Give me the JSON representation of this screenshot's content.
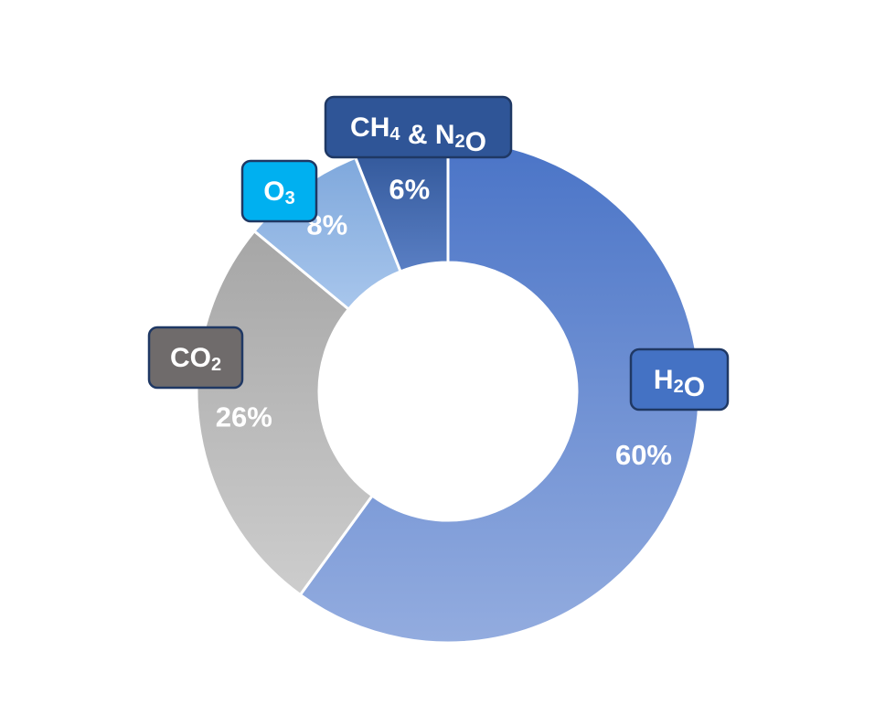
{
  "chart_data": {
    "type": "pie",
    "variant": "donut",
    "slices": [
      {
        "label": "H2O",
        "label_parts": [
          {
            "t": "H"
          },
          {
            "t": "2",
            "sub": true
          },
          {
            "t": "O"
          }
        ],
        "value": 60,
        "value_label": "60%",
        "fill_top": "#4a74c7",
        "fill_bottom": "#93acdf",
        "label_box_color": "#4472c4"
      },
      {
        "label": "CO2",
        "label_parts": [
          {
            "t": "CO"
          },
          {
            "t": "2",
            "sub": true
          }
        ],
        "value": 26,
        "value_label": "26%",
        "fill_top": "#a6a6a6",
        "fill_bottom": "#cdcdcd",
        "label_box_color": "#6f6b6b"
      },
      {
        "label": "O3",
        "label_parts": [
          {
            "t": "O"
          },
          {
            "t": "3",
            "sub": true
          }
        ],
        "value": 8,
        "value_label": "8%",
        "fill_top": "#7fa8dc",
        "fill_bottom": "#a8c6ec",
        "label_box_color": "#00b0f0"
      },
      {
        "label": "CH4 & N2O",
        "label_parts": [
          {
            "t": "CH"
          },
          {
            "t": "4",
            "sub": true
          },
          {
            "t": " & N"
          },
          {
            "t": "2",
            "sub": true
          },
          {
            "t": "O"
          }
        ],
        "value": 6,
        "value_label": "6%",
        "fill_top": "#2f5597",
        "fill_bottom": "#5a7fc4",
        "label_box_color": "#2f5597"
      }
    ],
    "start_angle_deg": 0,
    "direction": "clockwise",
    "legend": "none (callout boxes beside slices)"
  }
}
